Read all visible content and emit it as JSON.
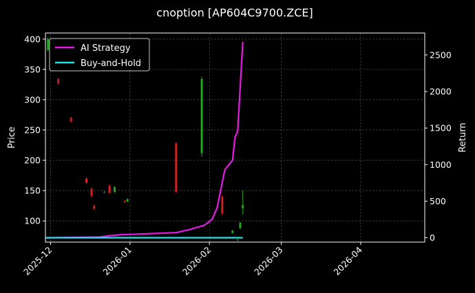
{
  "chart_data": {
    "type": "line",
    "title": "cnoption [AP604C9700.ZCE]",
    "ylabel_left": "Price",
    "ylabel_right": "Return",
    "xlabel": "",
    "x_range": [
      "2025-11-29",
      "2026-04-26"
    ],
    "ylim_left": [
      65,
      410
    ],
    "ylim_right": [
      -60,
      2800
    ],
    "x_ticks": [
      "2025-12-01",
      "2026-01-01",
      "2026-02-01",
      "2026-03-01",
      "2026-04-01"
    ],
    "x_tick_labels": [
      "2025-12",
      "2026-01",
      "2026-02",
      "2026-03",
      "2026-04"
    ],
    "y_ticks_left": [
      100,
      150,
      200,
      250,
      300,
      350,
      400
    ],
    "y_ticks_right": [
      0,
      500,
      1000,
      1500,
      2000,
      2500
    ],
    "grid": true,
    "legend_position": "top-left",
    "colors": {
      "background": "#000000",
      "ai_strategy": "#e619e6",
      "buy_and_hold": "#22e2e8",
      "candle_up": "#1fa81f",
      "candle_down": "#d42020",
      "grid": "#555555",
      "text": "#ffffff"
    },
    "series": [
      {
        "name": "AI Strategy",
        "axis": "right",
        "points": [
          [
            "2025-11-29",
            0
          ],
          [
            "2025-12-20",
            10
          ],
          [
            "2025-12-25",
            30
          ],
          [
            "2025-12-28",
            40
          ],
          [
            "2026-01-01",
            45
          ],
          [
            "2026-01-19",
            70
          ],
          [
            "2026-01-24",
            110
          ],
          [
            "2026-01-30",
            170
          ],
          [
            "2026-02-02",
            250
          ],
          [
            "2026-02-04",
            410
          ],
          [
            "2026-02-07",
            930
          ],
          [
            "2026-02-10",
            1060
          ],
          [
            "2026-02-11",
            1380
          ],
          [
            "2026-02-12",
            1450
          ],
          [
            "2026-02-14",
            2680
          ]
        ]
      },
      {
        "name": "Buy-and-Hold",
        "axis": "right",
        "points": [
          [
            "2025-11-29",
            0
          ],
          [
            "2026-02-14",
            0
          ]
        ]
      }
    ],
    "candles": [
      {
        "date": "2025-11-30",
        "open": 382,
        "close": 400,
        "high": 403,
        "low": 380
      },
      {
        "date": "2025-12-04",
        "open": 334,
        "close": 327,
        "high": 336,
        "low": 325
      },
      {
        "date": "2025-12-09",
        "open": 270,
        "close": 264,
        "high": 272,
        "low": 262
      },
      {
        "date": "2025-12-15",
        "open": 170,
        "close": 163,
        "high": 172,
        "low": 161
      },
      {
        "date": "2025-12-17",
        "open": 153,
        "close": 141,
        "high": 155,
        "low": 139
      },
      {
        "date": "2025-12-18",
        "open": 125,
        "close": 120,
        "high": 127,
        "low": 118
      },
      {
        "date": "2025-12-22",
        "open": 147,
        "close": 148,
        "high": 149,
        "low": 146
      },
      {
        "date": "2025-12-24",
        "open": 158,
        "close": 146,
        "high": 160,
        "low": 145
      },
      {
        "date": "2025-12-26",
        "open": 148,
        "close": 156,
        "high": 157,
        "low": 146
      },
      {
        "date": "2025-12-30",
        "open": 133,
        "close": 131,
        "high": 134,
        "low": 130
      },
      {
        "date": "2025-12-31",
        "open": 132,
        "close": 136,
        "high": 137,
        "low": 131
      },
      {
        "date": "2026-01-19",
        "open": 228,
        "close": 148,
        "high": 230,
        "low": 146
      },
      {
        "date": "2026-01-29",
        "open": 212,
        "close": 334,
        "high": 338,
        "low": 206
      },
      {
        "date": "2026-02-06",
        "open": 140,
        "close": 112,
        "high": 142,
        "low": 110
      },
      {
        "date": "2026-02-10",
        "open": 80,
        "close": 84,
        "high": 85,
        "low": 79
      },
      {
        "date": "2026-02-12",
        "open": 68,
        "close": 69,
        "high": 70,
        "low": 67
      },
      {
        "date": "2026-02-13",
        "open": 88,
        "close": 97,
        "high": 98,
        "low": 86
      },
      {
        "date": "2026-02-14",
        "open": 121,
        "close": 126,
        "high": 150,
        "low": 110
      }
    ]
  }
}
